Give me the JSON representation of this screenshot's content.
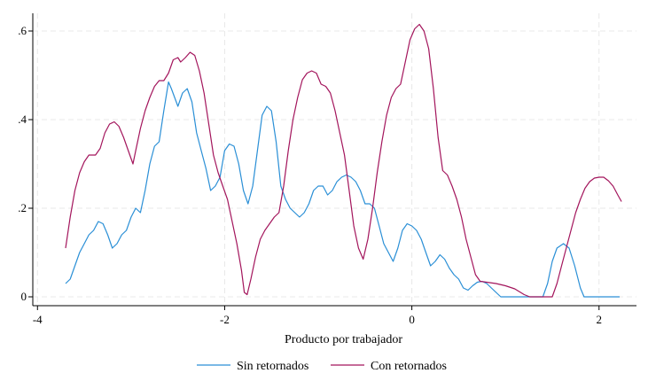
{
  "chart_data": {
    "type": "line",
    "title": "",
    "xlabel": "Producto por trabajador",
    "ylabel": "",
    "xlim": [
      -4.05,
      2.4
    ],
    "ylim": [
      -0.02,
      0.64
    ],
    "x_ticks": [
      -4,
      -2,
      0,
      2
    ],
    "x_tick_labels": [
      "-4",
      "-2",
      "0",
      "2"
    ],
    "y_ticks": [
      0,
      0.2,
      0.4,
      0.6
    ],
    "y_tick_labels": [
      "0",
      ".2",
      ".4",
      ".6"
    ],
    "grid": true,
    "legend_position": "bottom",
    "series": [
      {
        "name": "Sin retornados",
        "color": "#2a8fd6",
        "points": [
          [
            -3.7,
            0.03
          ],
          [
            -3.65,
            0.04
          ],
          [
            -3.6,
            0.07
          ],
          [
            -3.55,
            0.1
          ],
          [
            -3.5,
            0.12
          ],
          [
            -3.45,
            0.14
          ],
          [
            -3.4,
            0.15
          ],
          [
            -3.35,
            0.17
          ],
          [
            -3.3,
            0.165
          ],
          [
            -3.25,
            0.14
          ],
          [
            -3.2,
            0.11
          ],
          [
            -3.15,
            0.12
          ],
          [
            -3.1,
            0.14
          ],
          [
            -3.05,
            0.15
          ],
          [
            -3.0,
            0.18
          ],
          [
            -2.95,
            0.2
          ],
          [
            -2.9,
            0.19
          ],
          [
            -2.85,
            0.24
          ],
          [
            -2.8,
            0.3
          ],
          [
            -2.75,
            0.34
          ],
          [
            -2.7,
            0.35
          ],
          [
            -2.65,
            0.42
          ],
          [
            -2.6,
            0.485
          ],
          [
            -2.57,
            0.47
          ],
          [
            -2.5,
            0.43
          ],
          [
            -2.45,
            0.46
          ],
          [
            -2.4,
            0.47
          ],
          [
            -2.35,
            0.44
          ],
          [
            -2.3,
            0.37
          ],
          [
            -2.25,
            0.33
          ],
          [
            -2.2,
            0.29
          ],
          [
            -2.15,
            0.24
          ],
          [
            -2.1,
            0.25
          ],
          [
            -2.05,
            0.27
          ],
          [
            -2.0,
            0.33
          ],
          [
            -1.95,
            0.345
          ],
          [
            -1.9,
            0.34
          ],
          [
            -1.85,
            0.3
          ],
          [
            -1.8,
            0.24
          ],
          [
            -1.75,
            0.21
          ],
          [
            -1.7,
            0.25
          ],
          [
            -1.65,
            0.33
          ],
          [
            -1.6,
            0.41
          ],
          [
            -1.55,
            0.43
          ],
          [
            -1.5,
            0.42
          ],
          [
            -1.45,
            0.35
          ],
          [
            -1.4,
            0.25
          ],
          [
            -1.35,
            0.22
          ],
          [
            -1.3,
            0.2
          ],
          [
            -1.25,
            0.19
          ],
          [
            -1.2,
            0.18
          ],
          [
            -1.15,
            0.19
          ],
          [
            -1.1,
            0.21
          ],
          [
            -1.05,
            0.24
          ],
          [
            -1.0,
            0.25
          ],
          [
            -0.95,
            0.25
          ],
          [
            -0.9,
            0.23
          ],
          [
            -0.85,
            0.24
          ],
          [
            -0.8,
            0.26
          ],
          [
            -0.75,
            0.27
          ],
          [
            -0.7,
            0.275
          ],
          [
            -0.65,
            0.27
          ],
          [
            -0.6,
            0.26
          ],
          [
            -0.55,
            0.24
          ],
          [
            -0.5,
            0.21
          ],
          [
            -0.45,
            0.21
          ],
          [
            -0.4,
            0.2
          ],
          [
            -0.35,
            0.16
          ],
          [
            -0.3,
            0.12
          ],
          [
            -0.25,
            0.1
          ],
          [
            -0.2,
            0.08
          ],
          [
            -0.15,
            0.11
          ],
          [
            -0.1,
            0.15
          ],
          [
            -0.05,
            0.165
          ],
          [
            0.0,
            0.16
          ],
          [
            0.05,
            0.15
          ],
          [
            0.1,
            0.13
          ],
          [
            0.15,
            0.1
          ],
          [
            0.2,
            0.07
          ],
          [
            0.25,
            0.08
          ],
          [
            0.3,
            0.095
          ],
          [
            0.35,
            0.085
          ],
          [
            0.4,
            0.065
          ],
          [
            0.45,
            0.05
          ],
          [
            0.5,
            0.04
          ],
          [
            0.55,
            0.02
          ],
          [
            0.6,
            0.015
          ],
          [
            0.65,
            0.025
          ],
          [
            0.7,
            0.033
          ],
          [
            0.75,
            0.035
          ],
          [
            0.8,
            0.03
          ],
          [
            0.85,
            0.02
          ],
          [
            0.9,
            0.01
          ],
          [
            0.95,
            0.0
          ],
          [
            1.0,
            0.0
          ],
          [
            1.4,
            0.0
          ],
          [
            1.45,
            0.03
          ],
          [
            1.5,
            0.08
          ],
          [
            1.55,
            0.11
          ],
          [
            1.62,
            0.12
          ],
          [
            1.68,
            0.11
          ],
          [
            1.74,
            0.07
          ],
          [
            1.8,
            0.02
          ],
          [
            1.84,
            0.0
          ],
          [
            2.0,
            0.0
          ],
          [
            2.22,
            0.0
          ]
        ]
      },
      {
        "name": "Con retornados",
        "color": "#a3155c",
        "points": [
          [
            -3.7,
            0.11
          ],
          [
            -3.65,
            0.18
          ],
          [
            -3.6,
            0.24
          ],
          [
            -3.55,
            0.28
          ],
          [
            -3.5,
            0.305
          ],
          [
            -3.45,
            0.32
          ],
          [
            -3.38,
            0.32
          ],
          [
            -3.33,
            0.335
          ],
          [
            -3.28,
            0.37
          ],
          [
            -3.23,
            0.39
          ],
          [
            -3.18,
            0.395
          ],
          [
            -3.13,
            0.385
          ],
          [
            -3.08,
            0.36
          ],
          [
            -3.03,
            0.33
          ],
          [
            -2.98,
            0.3
          ],
          [
            -2.95,
            0.33
          ],
          [
            -2.9,
            0.38
          ],
          [
            -2.85,
            0.42
          ],
          [
            -2.8,
            0.45
          ],
          [
            -2.75,
            0.475
          ],
          [
            -2.7,
            0.488
          ],
          [
            -2.65,
            0.488
          ],
          [
            -2.6,
            0.505
          ],
          [
            -2.55,
            0.535
          ],
          [
            -2.5,
            0.54
          ],
          [
            -2.47,
            0.53
          ],
          [
            -2.42,
            0.54
          ],
          [
            -2.37,
            0.552
          ],
          [
            -2.32,
            0.545
          ],
          [
            -2.27,
            0.51
          ],
          [
            -2.22,
            0.46
          ],
          [
            -2.17,
            0.39
          ],
          [
            -2.12,
            0.32
          ],
          [
            -2.07,
            0.28
          ],
          [
            -2.02,
            0.25
          ],
          [
            -1.97,
            0.22
          ],
          [
            -1.92,
            0.17
          ],
          [
            -1.87,
            0.12
          ],
          [
            -1.82,
            0.06
          ],
          [
            -1.79,
            0.01
          ],
          [
            -1.76,
            0.005
          ],
          [
            -1.72,
            0.04
          ],
          [
            -1.67,
            0.09
          ],
          [
            -1.62,
            0.13
          ],
          [
            -1.57,
            0.15
          ],
          [
            -1.52,
            0.165
          ],
          [
            -1.47,
            0.18
          ],
          [
            -1.42,
            0.19
          ],
          [
            -1.37,
            0.25
          ],
          [
            -1.32,
            0.33
          ],
          [
            -1.27,
            0.4
          ],
          [
            -1.22,
            0.45
          ],
          [
            -1.17,
            0.49
          ],
          [
            -1.12,
            0.505
          ],
          [
            -1.07,
            0.51
          ],
          [
            -1.02,
            0.505
          ],
          [
            -0.97,
            0.48
          ],
          [
            -0.92,
            0.475
          ],
          [
            -0.87,
            0.46
          ],
          [
            -0.82,
            0.42
          ],
          [
            -0.77,
            0.37
          ],
          [
            -0.72,
            0.32
          ],
          [
            -0.67,
            0.24
          ],
          [
            -0.62,
            0.16
          ],
          [
            -0.57,
            0.11
          ],
          [
            -0.52,
            0.085
          ],
          [
            -0.47,
            0.13
          ],
          [
            -0.42,
            0.2
          ],
          [
            -0.37,
            0.28
          ],
          [
            -0.32,
            0.35
          ],
          [
            -0.27,
            0.41
          ],
          [
            -0.22,
            0.45
          ],
          [
            -0.17,
            0.47
          ],
          [
            -0.12,
            0.48
          ],
          [
            -0.07,
            0.53
          ],
          [
            -0.02,
            0.58
          ],
          [
            0.03,
            0.605
          ],
          [
            0.08,
            0.615
          ],
          [
            0.13,
            0.6
          ],
          [
            0.18,
            0.56
          ],
          [
            0.23,
            0.47
          ],
          [
            0.28,
            0.36
          ],
          [
            0.33,
            0.285
          ],
          [
            0.38,
            0.275
          ],
          [
            0.43,
            0.25
          ],
          [
            0.48,
            0.22
          ],
          [
            0.53,
            0.18
          ],
          [
            0.58,
            0.13
          ],
          [
            0.63,
            0.09
          ],
          [
            0.68,
            0.05
          ],
          [
            0.73,
            0.035
          ],
          [
            0.8,
            0.033
          ],
          [
            0.9,
            0.03
          ],
          [
            1.0,
            0.025
          ],
          [
            1.1,
            0.018
          ],
          [
            1.2,
            0.005
          ],
          [
            1.26,
            0.0
          ],
          [
            1.5,
            0.0
          ],
          [
            1.55,
            0.03
          ],
          [
            1.6,
            0.07
          ],
          [
            1.65,
            0.11
          ],
          [
            1.7,
            0.15
          ],
          [
            1.75,
            0.19
          ],
          [
            1.8,
            0.22
          ],
          [
            1.85,
            0.245
          ],
          [
            1.9,
            0.26
          ],
          [
            1.95,
            0.268
          ],
          [
            2.0,
            0.27
          ],
          [
            2.05,
            0.27
          ],
          [
            2.1,
            0.262
          ],
          [
            2.15,
            0.25
          ],
          [
            2.2,
            0.23
          ],
          [
            2.24,
            0.215
          ]
        ]
      }
    ]
  }
}
